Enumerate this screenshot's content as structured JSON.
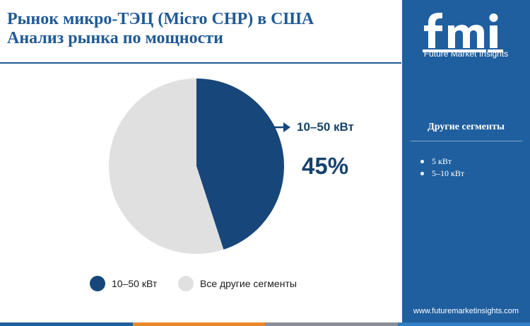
{
  "header": {
    "title_line1": "Рынок микро-ТЭЦ (Micro CHP) в США",
    "title_line2": "Анализ рынка по мощности"
  },
  "chart_data": {
    "type": "pie",
    "categories": [
      "10–50 кВт",
      "Все другие сегменты"
    ],
    "values": [
      45,
      55
    ],
    "colors": [
      "#17467a",
      "#e0e0e0"
    ],
    "callout": {
      "label": "10–50 кВт",
      "value": "45%"
    },
    "legend_position": "bottom",
    "unit": "%"
  },
  "legend": {
    "items": [
      {
        "label": "10–50 кВт",
        "color": "#17467a"
      },
      {
        "label": "Все другие сегменты",
        "color": "#e0e0e0"
      }
    ]
  },
  "sidebar": {
    "logo_text": "fmi",
    "logo_subtitle": "Future Market Insights",
    "segments_heading": "Другие сегменты",
    "segments": [
      "5 кВт",
      "5–10 кВт"
    ],
    "website": "www.futuremarketinsights.com",
    "background_color": "#1f5f9f"
  },
  "bottom_bar_colors": [
    "#1f5f9f",
    "#e8892b",
    "#8a8f96",
    "#2e7fc4"
  ]
}
